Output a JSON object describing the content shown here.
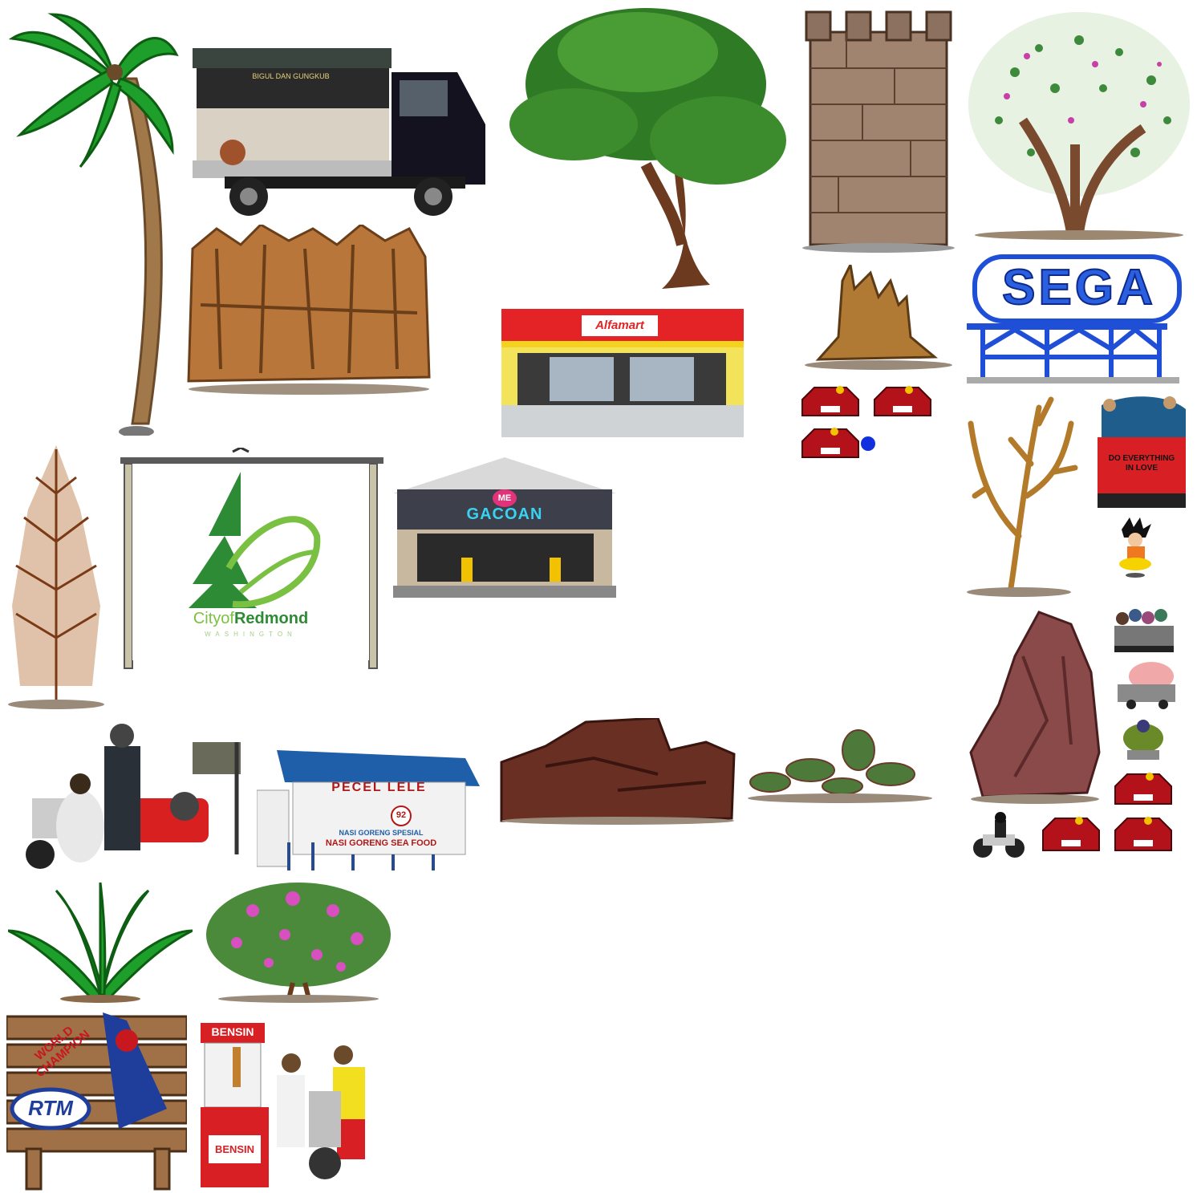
{
  "sheet": {
    "background": "#ffffff"
  },
  "food_truck": {
    "sign_line1": "BIGUL DAN GUNGKUB"
  },
  "alfamart": {
    "logo": "Alfamart"
  },
  "sega": {
    "logo": "SEGA"
  },
  "truck": {
    "slogan_line1": "DO EVERYTHING",
    "slogan_line2": "IN LOVE"
  },
  "redmond": {
    "title_a": "Cityof",
    "title_b": "Redmond",
    "subtitle": "WASHINGTON"
  },
  "gacoan": {
    "badge": "ME",
    "name": "GACOAN"
  },
  "pecel": {
    "title": "PECEL LELE",
    "number": "92",
    "line1": "NASI GORENG SPESIAL",
    "line2": "NASI GORENG SEA FOOD"
  },
  "rtm": {
    "banner": "WORLD CHAMPION",
    "logo": "RTM"
  },
  "bensin": {
    "top_label": "BENSIN",
    "bottom_label": "BENSIN"
  },
  "colors": {
    "palm_green": "#1e9e2a",
    "bark": "#8b5a2b",
    "rock": "#7a3b2e",
    "sega_blue": "#1f4fd6",
    "car_red": "#b3121b"
  }
}
